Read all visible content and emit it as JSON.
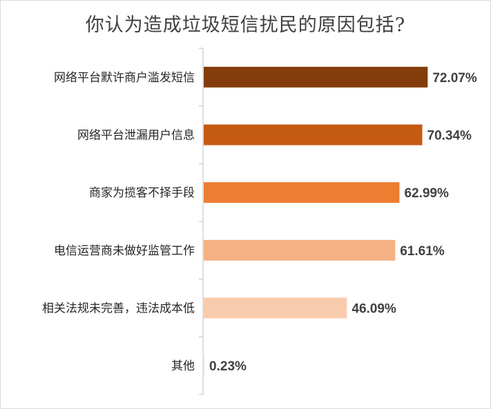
{
  "chart_data": {
    "type": "bar",
    "orientation": "horizontal",
    "title": "你认为造成垃圾短信扰民的原因包括?",
    "categories": [
      "网络平台默许商户滥发短信",
      "网络平台泄漏用户信息",
      "商家为揽客不择手段",
      "电信运营商未做好监管工作",
      "相关法规未完善，违法成本低",
      "其他"
    ],
    "values": [
      72.07,
      70.34,
      62.99,
      61.61,
      46.09,
      0.23
    ],
    "value_labels": [
      "72.07%",
      "70.34%",
      "62.99%",
      "61.61%",
      "46.09%",
      "0.23%"
    ],
    "bar_colors": [
      "#843C0C",
      "#C55A11",
      "#ED7D31",
      "#F4B183",
      "#F8CBAD",
      "#FBE5D6"
    ],
    "xlim": [
      0,
      100
    ],
    "grid": false,
    "legend": "none"
  }
}
